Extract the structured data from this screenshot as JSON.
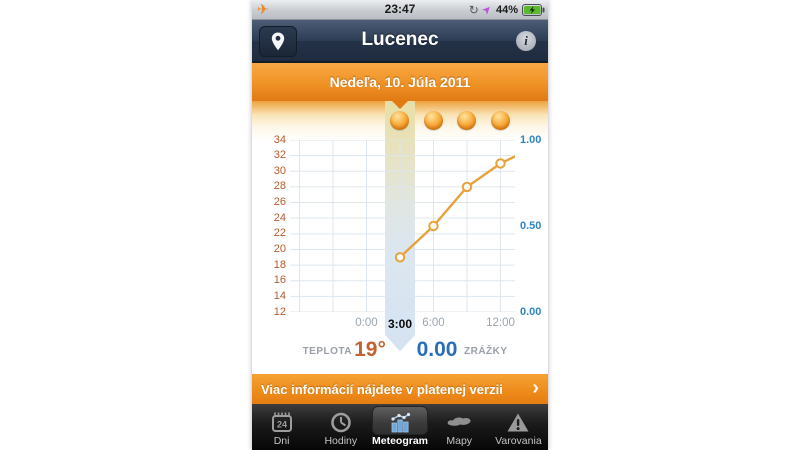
{
  "status_bar": {
    "time": "23:47",
    "battery_percent": "44%",
    "icons": [
      "airplane-mode-icon",
      "rotation-lock-icon",
      "location-arrow-icon",
      "battery-charging-icon"
    ]
  },
  "header": {
    "title": "Lucenec",
    "location_button": "location-pin",
    "info_button": "i"
  },
  "date_banner": {
    "text": "Nedeľa, 10. Júla 2011"
  },
  "chart_data": {
    "type": "line",
    "title": "Meteogram",
    "x_unit": "hours",
    "x_range": [
      -6.85,
      13.3
    ],
    "grid_hours": [
      -6,
      -3,
      0,
      3,
      6,
      9,
      12
    ],
    "x_ticks": [
      {
        "hour": 0,
        "label": "0:00",
        "selected": false
      },
      {
        "hour": 3,
        "label": "3:00",
        "selected": true
      },
      {
        "hour": 6,
        "label": "6:00",
        "selected": false
      },
      {
        "hour": 12,
        "label": "12:00",
        "selected": false
      }
    ],
    "temp_axis": {
      "min": 12,
      "max": 34,
      "labels": [
        34,
        32,
        30,
        28,
        26,
        24,
        22,
        20,
        18,
        16,
        14,
        12
      ],
      "color": "#b55a2c"
    },
    "precip_axis": {
      "min": 0,
      "max": 1,
      "labels": [
        {
          "value": 1,
          "label": "1.00"
        },
        {
          "value": 0.5,
          "label": "0.50"
        },
        {
          "value": 0,
          "label": "0.00"
        }
      ],
      "color": "#2f85c3"
    },
    "series": [
      {
        "name": "teplota",
        "color": "#e8a23c",
        "points": [
          {
            "hour": 3,
            "temp": 19,
            "marker": true
          },
          {
            "hour": 6,
            "temp": 23,
            "marker": true
          },
          {
            "hour": 9,
            "temp": 28,
            "marker": true
          },
          {
            "hour": 12,
            "temp": 31,
            "marker": true
          },
          {
            "hour": 13.3,
            "temp": 31.9,
            "marker": false
          }
        ]
      }
    ],
    "forecast_suns": [
      {
        "hour": 3
      },
      {
        "hour": 6
      },
      {
        "hour": 9
      },
      {
        "hour": 12
      }
    ],
    "selected_hour": 3,
    "grid_color": "#dde6ee"
  },
  "summary": {
    "teplota_label": "TEPLOTA",
    "temp_value": "19°",
    "precip_value": "0.00",
    "zrazky_label": "ZRÁŽKY"
  },
  "promo": {
    "text": "Viac informácií nájdete v platenej verzii",
    "chevron": "›"
  },
  "tab_bar": {
    "tabs": [
      {
        "label": "Dni",
        "icon": "calendar-24-icon",
        "selected": false
      },
      {
        "label": "Hodiny",
        "icon": "clock-icon",
        "selected": false
      },
      {
        "label": "Meteogram",
        "icon": "meteogram-chart-icon",
        "selected": true
      },
      {
        "label": "Mapy",
        "icon": "map-icon",
        "selected": false
      },
      {
        "label": "Varovania",
        "icon": "warning-triangle-icon",
        "selected": false
      }
    ]
  }
}
